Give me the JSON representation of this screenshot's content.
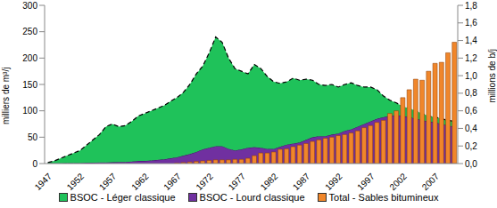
{
  "chart_data": {
    "type": "composed",
    "stacked": true,
    "grid": false,
    "legend": "bottom",
    "y_label": "milliers de m³/j",
    "y2_label": "millions de b/j",
    "categories": [
      "1947",
      null,
      null,
      null,
      null,
      "1952",
      null,
      null,
      null,
      null,
      "1957",
      null,
      null,
      null,
      null,
      "1962",
      null,
      null,
      null,
      null,
      "1967",
      null,
      null,
      null,
      null,
      "1972",
      null,
      null,
      null,
      null,
      "1977",
      null,
      null,
      null,
      null,
      "1982",
      null,
      null,
      null,
      null,
      "1987",
      null,
      null,
      null,
      null,
      "1992",
      null,
      null,
      null,
      null,
      "1997",
      null,
      null,
      null,
      null,
      "2002",
      null,
      null,
      null,
      null,
      "2007",
      null,
      null,
      null
    ],
    "ylim": [
      0,
      300
    ],
    "yticks": [
      0,
      50,
      100,
      150,
      200,
      250,
      300
    ],
    "y2lim": [
      0,
      1.8
    ],
    "y2ticks": [
      {
        "value": 0,
        "label": "0,0"
      },
      {
        "value": 0.2,
        "label": "0,2"
      },
      {
        "value": 0.4,
        "label": "0,4"
      },
      {
        "value": 0.6,
        "label": "0,6"
      },
      {
        "value": 0.8,
        "label": "0,8"
      },
      {
        "value": 1,
        "label": "1,0"
      },
      {
        "value": 1.2,
        "label": "1,2"
      },
      {
        "value": 1.4,
        "label": "1,4"
      },
      {
        "value": 1.6,
        "label": "1,6"
      },
      {
        "value": 1.8,
        "label": "1,8"
      }
    ],
    "series": [
      {
        "name": "BSOC - Léger classique",
        "type": "area",
        "color": "#1fc25a",
        "line_style": "dashed",
        "values": [
          1.5,
          4.5,
          9.5,
          14,
          19,
          24,
          33.5,
          43.5,
          53,
          68,
          72.5,
          67,
          69,
          76,
          85,
          90,
          94,
          98,
          102,
          108,
          113,
          120,
          132,
          148,
          158,
          180,
          207,
          197,
          172,
          155,
          148,
          140,
          157,
          150,
          137,
          127,
          120,
          119,
          124,
          118,
          115,
          108,
          98,
          96,
          95,
          88,
          88,
          88,
          78,
          70,
          65,
          55,
          40,
          30,
          23,
          18,
          17,
          15,
          13,
          10,
          10,
          10,
          10,
          10
        ]
      },
      {
        "name": "BSOC - Lourd classique",
        "type": "area",
        "color": "#7030a0",
        "line_style": "solid",
        "values": [
          0.5,
          0.5,
          0.5,
          1,
          1,
          1,
          1.5,
          1.5,
          2,
          2,
          2.5,
          3,
          3,
          4,
          5,
          5,
          6,
          7,
          8,
          10,
          12,
          15,
          18,
          22,
          27,
          30,
          33,
          33,
          28,
          25,
          27,
          30,
          31,
          30,
          28,
          28,
          32,
          36,
          38,
          40,
          45,
          50,
          52,
          52,
          55,
          57,
          62,
          65,
          70,
          75,
          80,
          85,
          88,
          90,
          92,
          90,
          88,
          85,
          82,
          80,
          78,
          75,
          72,
          70
        ]
      },
      {
        "name": "Total - Sables bitumineux",
        "type": "bar",
        "color": "#f0862a",
        "values": [
          0,
          0,
          0,
          0,
          0,
          0,
          0,
          0,
          0,
          0,
          0,
          0,
          0,
          0,
          0,
          0,
          0,
          0,
          0,
          0,
          1,
          2,
          3,
          4,
          5,
          6,
          7,
          7,
          7,
          8,
          8,
          10,
          15,
          20,
          20,
          22,
          27,
          28,
          32,
          35,
          38,
          42,
          45,
          48,
          50,
          53,
          55,
          58,
          62,
          68,
          72,
          78,
          82,
          95,
          100,
          125,
          140,
          160,
          158,
          175,
          190,
          192,
          210,
          230
        ]
      }
    ]
  }
}
